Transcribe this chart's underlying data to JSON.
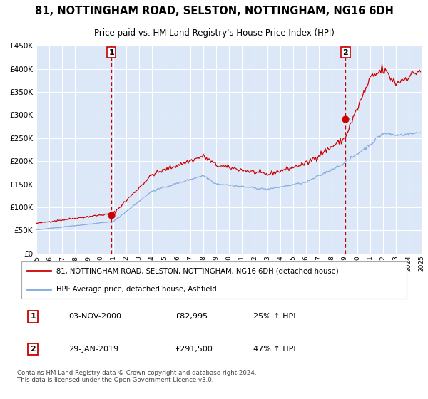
{
  "title": "81, NOTTINGHAM ROAD, SELSTON, NOTTINGHAM, NG16 6DH",
  "subtitle": "Price paid vs. HM Land Registry's House Price Index (HPI)",
  "legend_line1": "81, NOTTINGHAM ROAD, SELSTON, NOTTINGHAM, NG16 6DH (detached house)",
  "legend_line2": "HPI: Average price, detached house, Ashfield",
  "annotation1_date": "03-NOV-2000",
  "annotation1_price": "£82,995",
  "annotation1_hpi": "25% ↑ HPI",
  "annotation2_date": "29-JAN-2019",
  "annotation2_price": "£291,500",
  "annotation2_hpi": "47% ↑ HPI",
  "footnote": "Contains HM Land Registry data © Crown copyright and database right 2024.\nThis data is licensed under the Open Government Licence v3.0.",
  "sale1_year": 2000.84,
  "sale1_value": 82995,
  "sale2_year": 2019.08,
  "sale2_value": 291500,
  "price_line_color": "#cc0000",
  "hpi_line_color": "#88aadd",
  "background_color": "#dce8f8",
  "plot_bg_color": "#dce8f8",
  "grid_color": "#ffffff",
  "vline_color": "#cc0000",
  "title_fontsize": 10.5,
  "subtitle_fontsize": 8.5,
  "ylim_max": 450000,
  "ylim_min": 0,
  "xlim_min": 1995,
  "xlim_max": 2025
}
